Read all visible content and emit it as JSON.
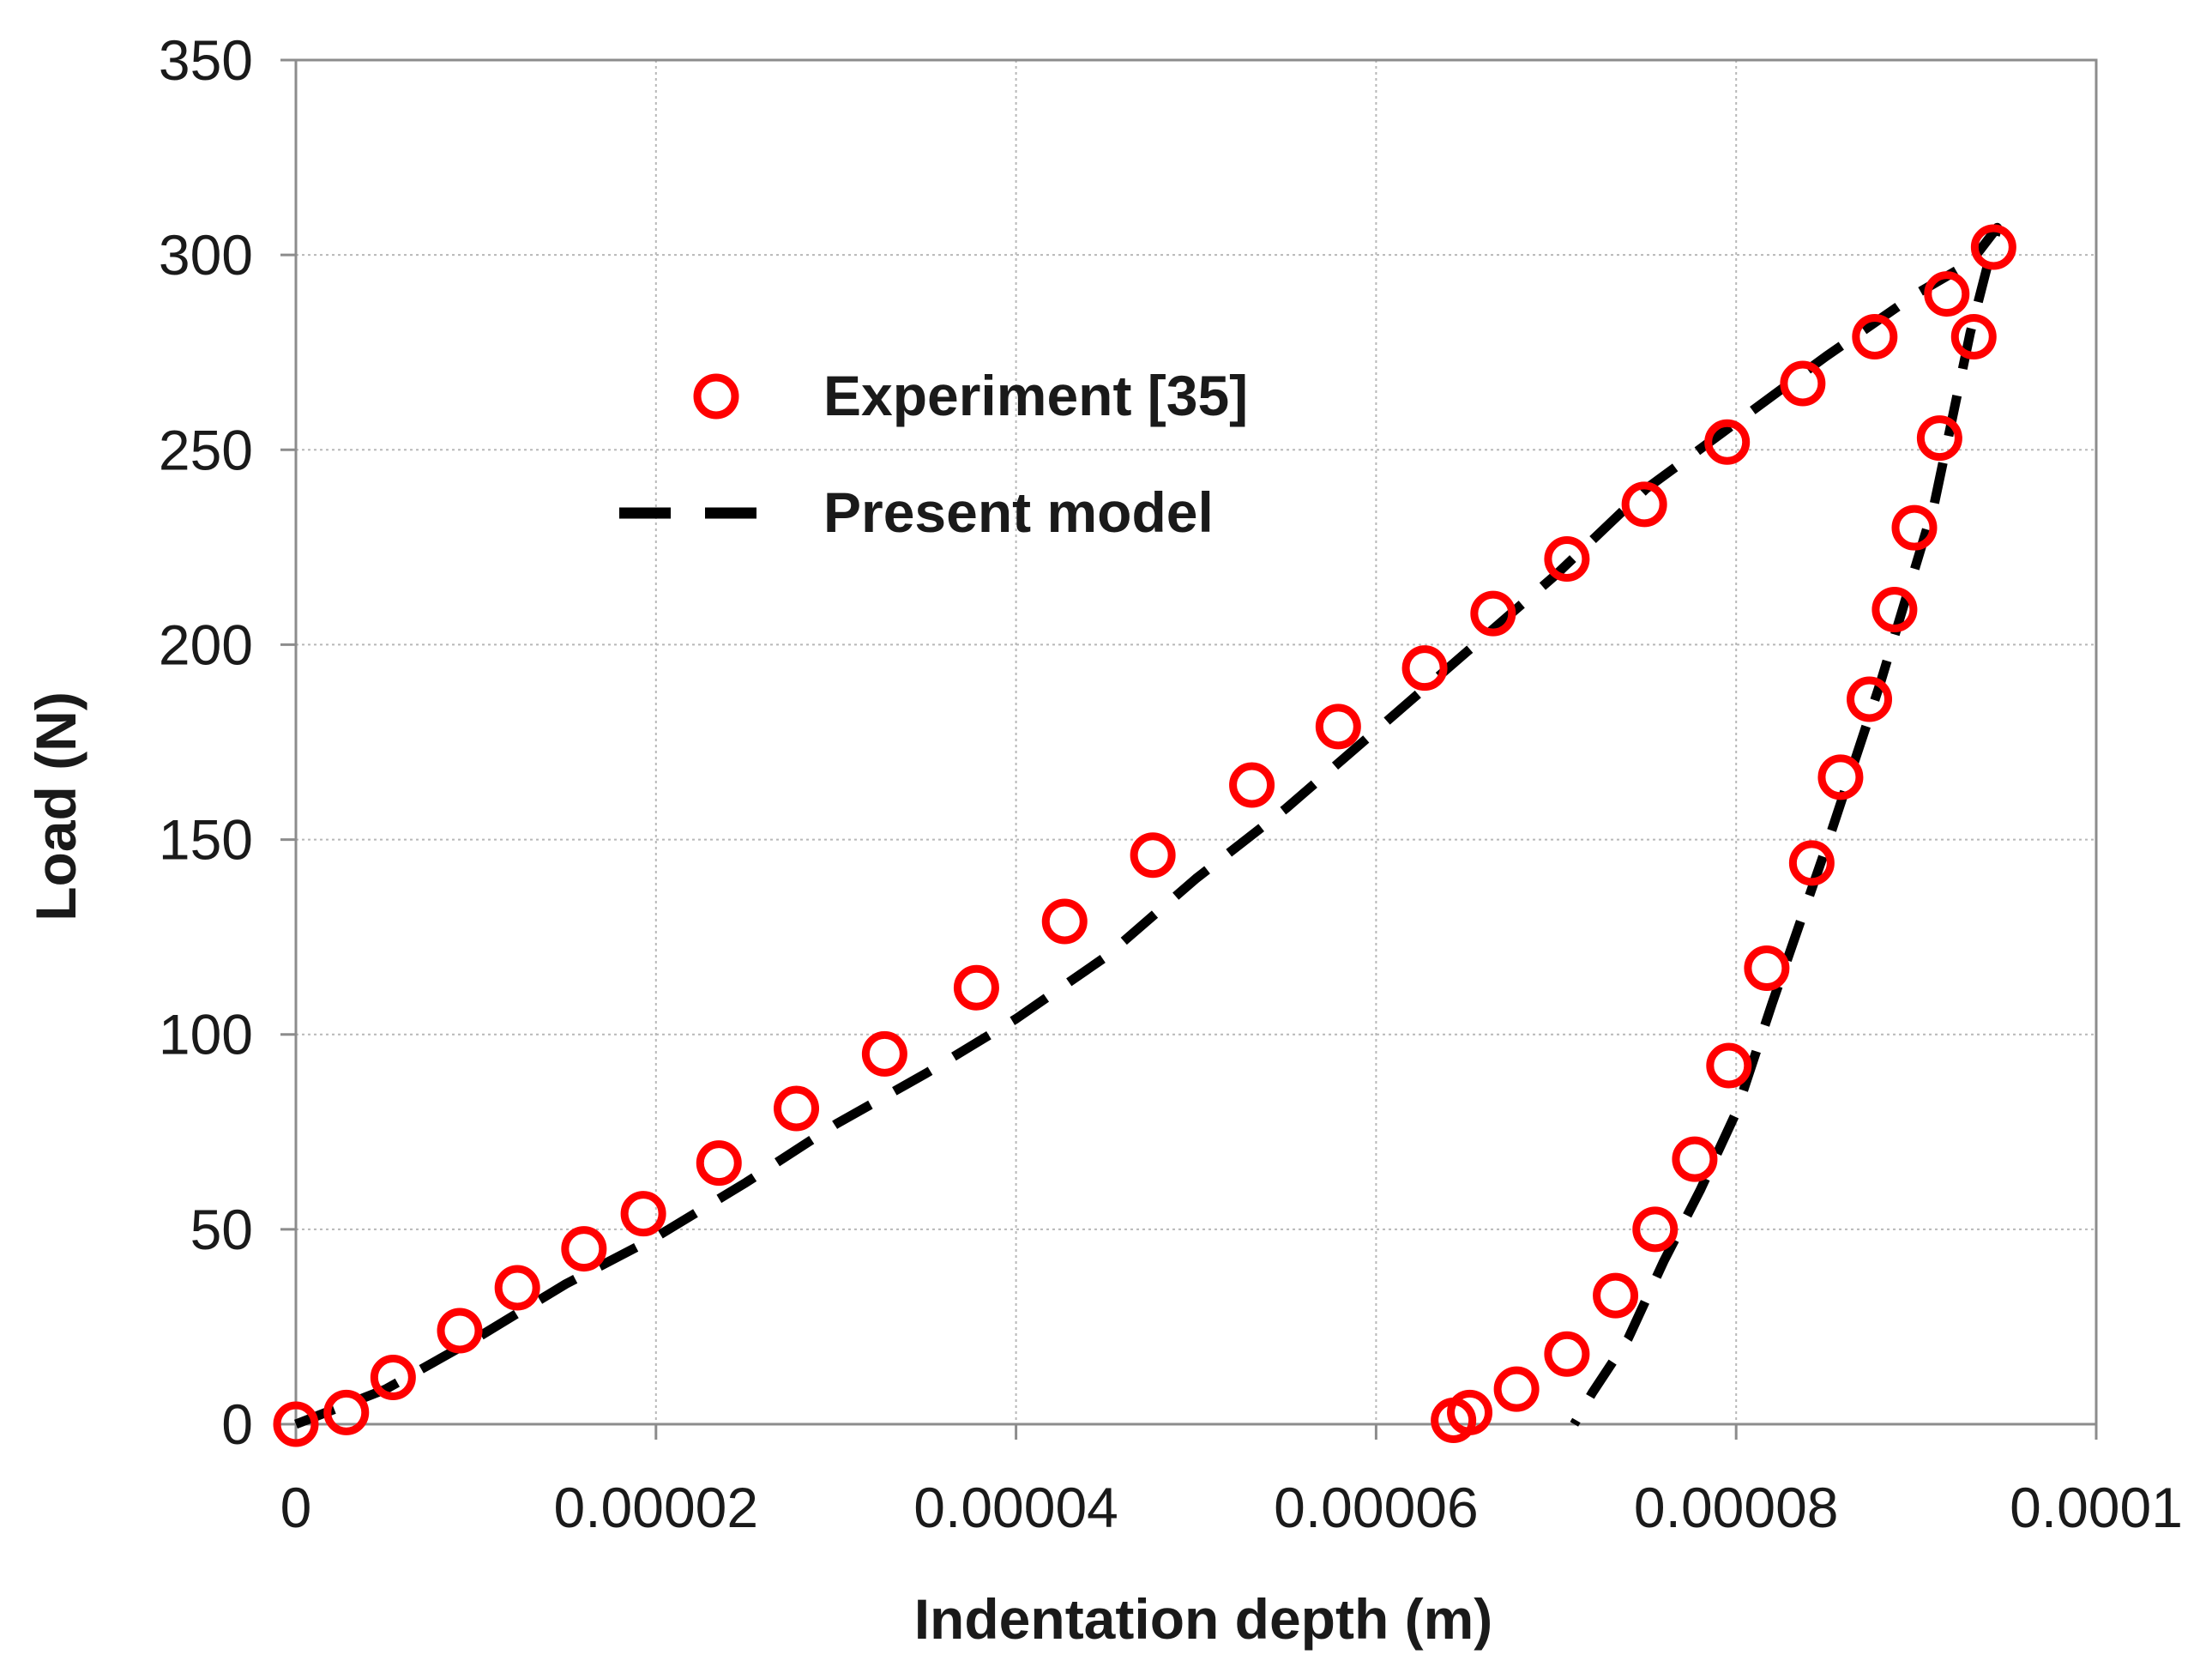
{
  "chart_data": {
    "type": "scatter",
    "title": "",
    "xlabel": "Indentation depth (m)",
    "ylabel": "Load (N)",
    "xlim": [
      0,
      0.0001
    ],
    "ylim": [
      0,
      350
    ],
    "xticks": [
      0,
      2e-05,
      4e-05,
      6e-05,
      8e-05,
      0.0001
    ],
    "xtick_labels": [
      "0",
      "0.00002",
      "0.00004",
      "0.00006",
      "0.00008",
      "0.0001"
    ],
    "yticks": [
      0,
      50,
      100,
      150,
      200,
      250,
      300,
      350
    ],
    "ytick_labels": [
      "0",
      "50",
      "100",
      "150",
      "200",
      "250",
      "300",
      "350"
    ],
    "grid": true,
    "legend_position": "upper-left inside plot",
    "series": [
      {
        "name": "Experiment [35]",
        "kind": "markers",
        "marker": "open-circle",
        "color": "#ff0000",
        "x": [
          0,
          2.8e-06,
          5.4e-06,
          9.1e-06,
          1.23e-05,
          1.6e-05,
          1.93e-05,
          2.35e-05,
          2.78e-05,
          3.27e-05,
          3.78e-05,
          4.27e-05,
          4.76e-05,
          5.31e-05,
          5.79e-05,
          6.27e-05,
          6.65e-05,
          7.06e-05,
          7.49e-05,
          7.95e-05,
          8.37e-05,
          8.77e-05,
          9.17e-05,
          9.43e-05,
          9.32e-05,
          9.13e-05,
          8.99e-05,
          8.88e-05,
          8.74e-05,
          8.58e-05,
          8.42e-05,
          8.17e-05,
          7.96e-05,
          7.77e-05,
          7.55e-05,
          7.33e-05,
          7.06e-05,
          6.78e-05,
          6.52e-05,
          6.43e-05
        ],
        "y": [
          0,
          3,
          12,
          24,
          35,
          45,
          54,
          67,
          81,
          95,
          112,
          129,
          146,
          164,
          179,
          194,
          208,
          222,
          236,
          252,
          267,
          279,
          290,
          302,
          279,
          253,
          230,
          209,
          186,
          166,
          144,
          117,
          92,
          68,
          50,
          33,
          18,
          9,
          3,
          1
        ]
      },
      {
        "name": "Present model",
        "kind": "line",
        "line_style": "dashed",
        "color": "#000000",
        "x": [
          0,
          5e-06,
          1e-05,
          1.5e-05,
          2e-05,
          2.5e-05,
          3e-05,
          3.5e-05,
          4e-05,
          4.5e-05,
          5e-05,
          5.5e-05,
          6e-05,
          6.5e-05,
          7e-05,
          7.5e-05,
          8e-05,
          8.5e-05,
          9e-05,
          9.3e-05,
          9.45e-05,
          9.3e-05,
          9.1e-05,
          8.8e-05,
          8.5e-05,
          8.2e-05,
          8e-05,
          7.8e-05,
          7.6e-05,
          7.4e-05,
          7.2e-05,
          7.1e-05
        ],
        "y": [
          0,
          9,
          22,
          36,
          48,
          62,
          77,
          90,
          104,
          120,
          140,
          158,
          178,
          198,
          218,
          240,
          257,
          274,
          290,
          298,
          307,
          280,
          236,
          190,
          148,
          108,
          80,
          60,
          42,
          22,
          8,
          0
        ]
      }
    ]
  }
}
